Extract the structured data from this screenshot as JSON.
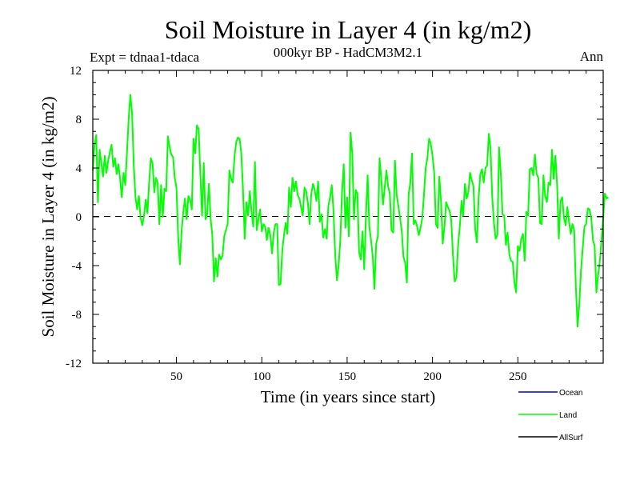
{
  "chart_data": {
    "type": "line",
    "title": "Soil Moisture in Layer 4 (in kg/m2)",
    "subtitle": "000kyr BP - HadCM3M2.1",
    "experiment_label": "Expt = tdnaa1-tdaca",
    "period_label": "Ann",
    "xlabel": "Time (in years since start)",
    "ylabel": "Soil Moisture in Layer 4 (in kg/m2)",
    "xlim": [
      1,
      300
    ],
    "ylim": [
      -12,
      12
    ],
    "x_ticks": [
      50,
      100,
      150,
      200,
      250
    ],
    "y_ticks": [
      -12,
      -8,
      -4,
      0,
      4,
      8,
      12
    ],
    "x_tick_labels": [
      "50",
      "100",
      "150",
      "200",
      "250"
    ],
    "y_tick_labels": [
      "-12",
      "-8",
      "-4",
      "0",
      "4",
      "8",
      "12"
    ],
    "zero_line": true,
    "legend": {
      "placement": "bottom-right",
      "entries": [
        {
          "name": "Ocean",
          "color": "#0000cc"
        },
        {
          "name": "Land",
          "color": "#00ff00"
        },
        {
          "name": "AllSurf",
          "color": "#000000"
        }
      ]
    },
    "series": [
      {
        "name": "Land",
        "color": "#00ff00",
        "x_start": 1,
        "x_step": 1,
        "values": [
          3.8,
          5.9,
          6.7,
          1.2,
          5.5,
          4.4,
          3.3,
          5.0,
          3.6,
          4.6,
          5.3,
          5.9,
          4.1,
          4.8,
          3.5,
          4.3,
          3.1,
          1.6,
          3.6,
          2.6,
          5.2,
          8.0,
          10.0,
          8.5,
          4.2,
          1.6,
          0.6,
          1.7,
          -0.1,
          -0.7,
          0.1,
          1.4,
          0.3,
          2.8,
          4.8,
          4.4,
          2.0,
          3.2,
          2.8,
          -0.6,
          2.6,
          0.0,
          2.3,
          2.1,
          6.6,
          5.7,
          5.1,
          4.9,
          3.2,
          2.4,
          -1.6,
          -3.9,
          -1.2,
          0.4,
          1.5,
          -0.2,
          1.7,
          1.4,
          0.6,
          6.4,
          5.2,
          7.5,
          7.2,
          3.5,
          0.1,
          4.4,
          -0.2,
          0.2,
          2.7,
          -0.1,
          -1.5,
          -5.3,
          -3.4,
          -4.9,
          -3.1,
          -3.5,
          -3.2,
          -1.6,
          -1.1,
          -0.6,
          3.8,
          3.1,
          2.8,
          4.9,
          6.1,
          6.5,
          6.4,
          5.2,
          2.2,
          -1.8,
          1.2,
          0.1,
          2.1,
          0.4,
          -0.8,
          4.5,
          -1.1,
          -0.2,
          0.6,
          -1.2,
          -0.6,
          -0.8,
          -1.9,
          -0.9,
          -1.5,
          -3.0,
          -1.3,
          -0.6,
          -0.6,
          -5.6,
          -5.5,
          -2.8,
          -1.5,
          -0.5,
          -1.4,
          2.4,
          0.8,
          3.2,
          2.1,
          2.9,
          1.8,
          1.5,
          0.8,
          0.1,
          2.4,
          2.1,
          1.1,
          -0.6,
          1.9,
          2.7,
          2.2,
          1.3,
          2.9,
          -0.4,
          0.2,
          -1.7,
          -1.0,
          -1.8,
          0.9,
          1.6,
          2.6,
          0.5,
          -3.1,
          -5.2,
          -4.0,
          -1.9,
          2.0,
          4.3,
          -0.9,
          1.6,
          -1.6,
          6.9,
          5.2,
          -0.2,
          2.2,
          1.9,
          -2.9,
          -3.5,
          -1.2,
          -4.3,
          0.1,
          3.4,
          -0.8,
          -1.9,
          -3.3,
          -5.9,
          -2.2,
          -1.6,
          4.8,
          3.1,
          1.0,
          2.4,
          3.8,
          2.5,
          1.9,
          -1.1,
          -1.3,
          4.6,
          1.8,
          0.9,
          -0.1,
          -1.2,
          -3.3,
          -3.8,
          -5.4,
          1.8,
          2.8,
          5.2,
          -0.6,
          -0.3,
          -0.8,
          -1.5,
          -0.9,
          -0.1,
          1.8,
          4.0,
          4.8,
          6.4,
          6.0,
          5.0,
          3.6,
          -0.6,
          -0.9,
          3.3,
          1.2,
          -2.2,
          -0.8,
          1.2,
          0.8,
          0.5,
          -0.3,
          -3.2,
          -5.3,
          -5.0,
          -2.3,
          -0.8,
          1.3,
          0.1,
          2.7,
          1.5,
          2.0,
          3.6,
          3.0,
          2.5,
          -1.0,
          -2.1,
          1.5,
          3.5,
          3.9,
          2.8,
          4.0,
          4.2,
          6.8,
          5.6,
          1.6,
          -0.5,
          -1.8,
          -1.5,
          5.7,
          3.6,
          0.2,
          0.1,
          -2.3,
          -1.3,
          -3.1,
          -3.6,
          -3.7,
          -5.4,
          -6.2,
          -2.4,
          -2.8,
          -1.8,
          -1.4,
          -3.6,
          0.4,
          0.1,
          3.9,
          4.0,
          3.4,
          5.1,
          3.5,
          3.2,
          -0.5,
          -0.6,
          3.4,
          1.7,
          1.2,
          2.8,
          2.6,
          5.5,
          3.1,
          5.0,
          2.6,
          -1.8,
          1.3,
          1.6,
          -0.1,
          -0.7,
          0.8,
          -0.4,
          -1.4,
          -0.6,
          -1.1,
          -5.8,
          -9.0,
          -7.2,
          -4.4,
          -2.6,
          -0.8,
          -0.6,
          0.7,
          0.6,
          -0.1,
          -1.9,
          -2.4,
          -6.2,
          -4.8,
          -3.7,
          -1.9,
          -0.1,
          1.9,
          1.5,
          1.6
        ]
      }
    ]
  }
}
